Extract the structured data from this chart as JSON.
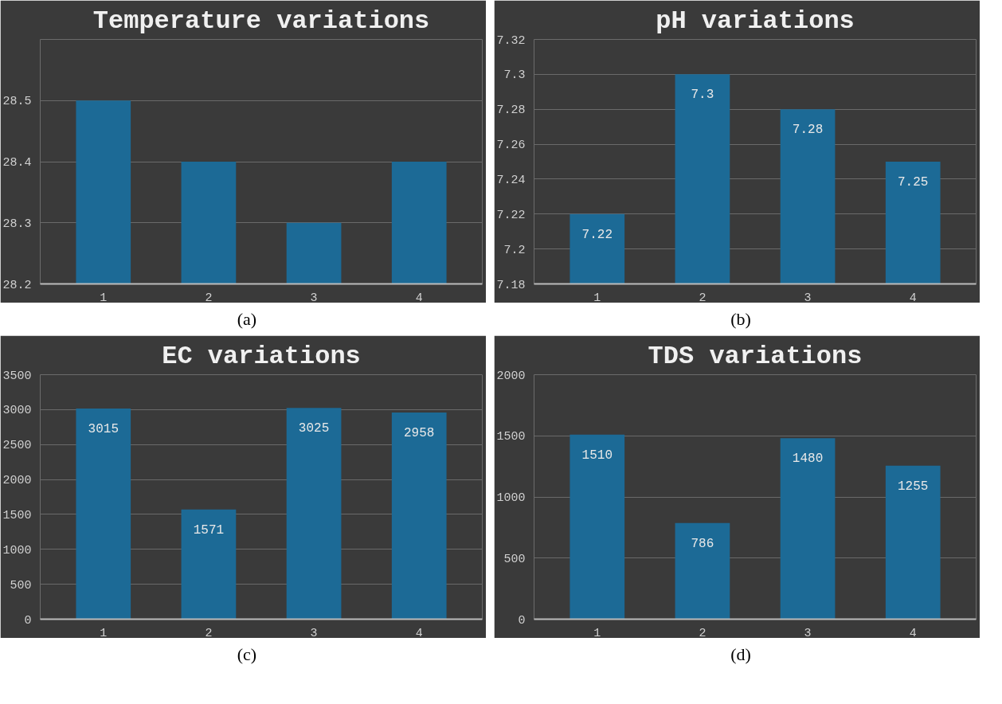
{
  "chart_data": [
    {
      "type": "bar",
      "title": "Temperature variations",
      "categories": [
        "1",
        "2",
        "3",
        "4"
      ],
      "values": [
        28.5,
        28.4,
        28.3,
        28.4
      ],
      "color": "#1c6a96",
      "ylim": [
        28.2,
        28.6
      ],
      "yticks": [
        28.2,
        28.3,
        28.4,
        28.5
      ],
      "grid": "y",
      "annotations": [
        "(a)"
      ]
    },
    {
      "type": "bar",
      "title": "pH variations",
      "categories": [
        "1",
        "2",
        "3",
        "4"
      ],
      "values": [
        7.22,
        7.3,
        7.28,
        7.25
      ],
      "color": "#1c6a96",
      "ylim": [
        7.18,
        7.32
      ],
      "yticks": [
        7.18,
        7.2,
        7.22,
        7.24,
        7.26,
        7.28,
        7.3,
        7.32
      ],
      "grid": "y",
      "data_labels": true,
      "annotations": [
        "(b)"
      ]
    },
    {
      "type": "bar",
      "title": "EC variations",
      "categories": [
        "1",
        "2",
        "3",
        "4"
      ],
      "values": [
        3015,
        1571,
        3025,
        2958
      ],
      "color": "#1c6a96",
      "ylim": [
        0,
        3500
      ],
      "yticks": [
        0,
        500,
        1000,
        1500,
        2000,
        2500,
        3000,
        3500
      ],
      "grid": "y",
      "data_labels": true,
      "annotations": [
        "(c)"
      ]
    },
    {
      "type": "bar",
      "title": "TDS variations",
      "categories": [
        "1",
        "2",
        "3",
        "4"
      ],
      "values": [
        1510,
        786,
        1480,
        1255
      ],
      "color": "#1c6a96",
      "ylim": [
        0,
        2000
      ],
      "yticks": [
        0,
        500,
        1000,
        1500,
        2000
      ],
      "grid": "y",
      "data_labels": true,
      "annotations": [
        "(d)"
      ]
    }
  ]
}
